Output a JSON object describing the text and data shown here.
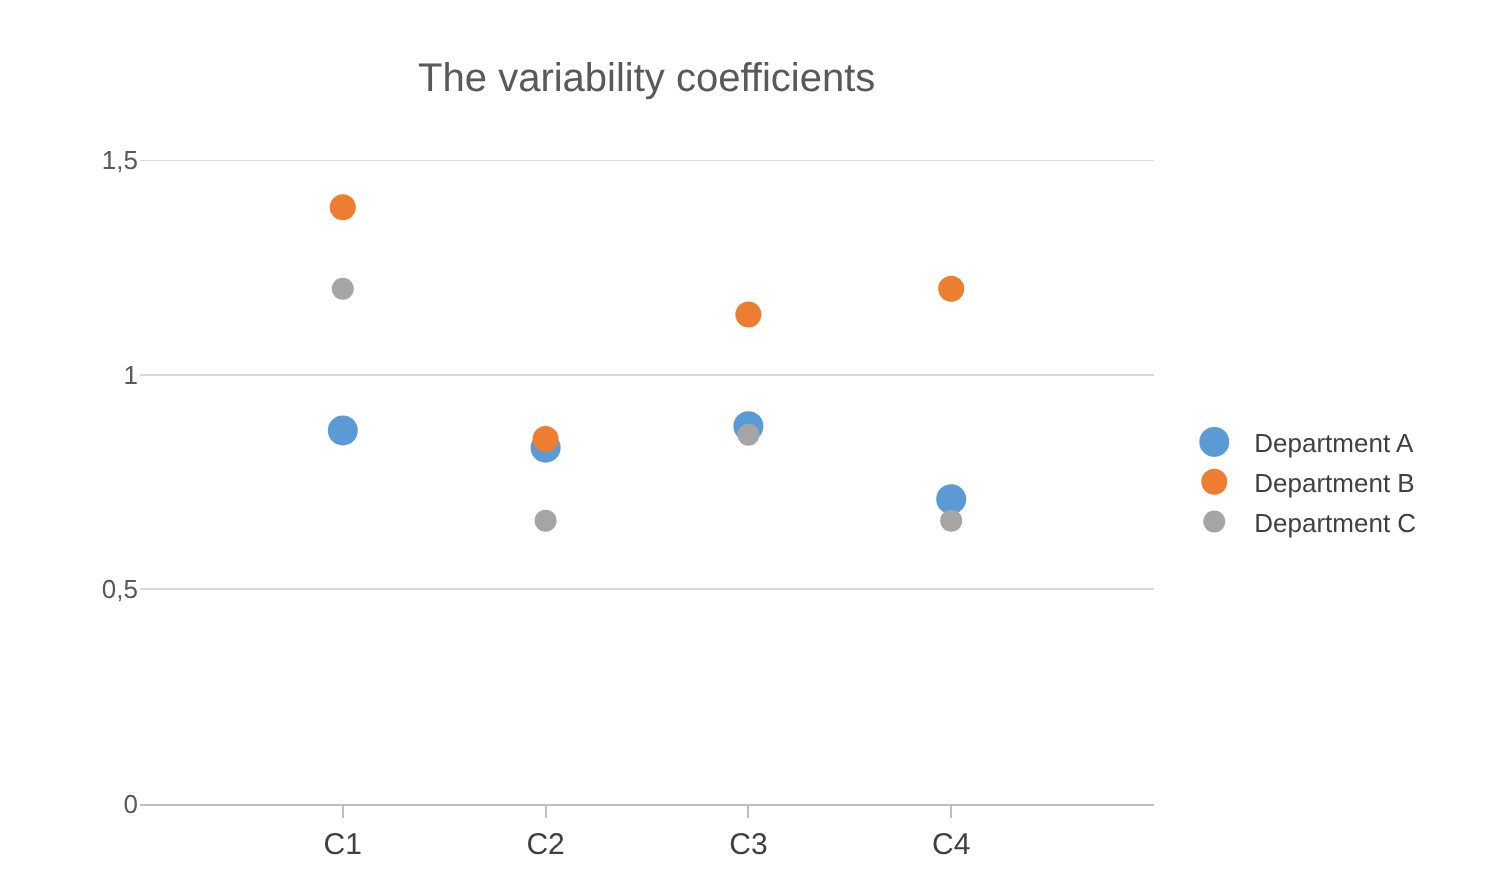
{
  "chart_data": {
    "type": "scatter",
    "title": "The variability coefficients",
    "categories": [
      "C1",
      "C2",
      "C3",
      "C4"
    ],
    "series": [
      {
        "name": "Department A",
        "color": "#5b9bd5",
        "values": [
          0.87,
          0.83,
          0.88,
          0.71
        ]
      },
      {
        "name": "Department B",
        "color": "#ed7d31",
        "values": [
          1.39,
          0.85,
          1.14,
          1.2
        ]
      },
      {
        "name": "Department C",
        "color": "#a5a5a5",
        "values": [
          1.2,
          0.66,
          0.86,
          0.66
        ]
      }
    ],
    "ylim": [
      0,
      1.5
    ],
    "yticks": [
      0,
      {
        "value": 0.5,
        "label": "0,5"
      },
      1,
      {
        "value": 1.5,
        "label": "1,5"
      }
    ],
    "grid": "y",
    "legend": "right",
    "marker": "circle"
  }
}
